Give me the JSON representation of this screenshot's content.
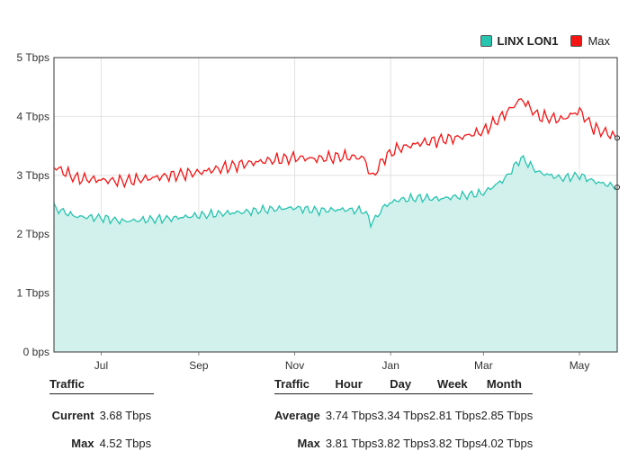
{
  "chart_data": {
    "type": "area",
    "title": "",
    "xlabel": "",
    "ylabel": "",
    "x_range": [
      "2024-06-01",
      "2025-05-25"
    ],
    "ylim": [
      0,
      5
    ],
    "y_unit": "Tbps",
    "y_ticks": [
      {
        "value": 0,
        "label": "0 bps"
      },
      {
        "value": 1,
        "label": "1 Tbps"
      },
      {
        "value": 2,
        "label": "2 Tbps"
      },
      {
        "value": 3,
        "label": "3 Tbps"
      },
      {
        "value": 4,
        "label": "4 Tbps"
      },
      {
        "value": 5,
        "label": "5 Tbps"
      }
    ],
    "x_ticks": [
      {
        "date": "2024-07-01",
        "label": "Jul"
      },
      {
        "date": "2024-09-01",
        "label": "Sep"
      },
      {
        "date": "2024-11-01",
        "label": "Nov"
      },
      {
        "date": "2025-01-01",
        "label": "Jan"
      },
      {
        "date": "2025-03-01",
        "label": "Mar"
      },
      {
        "date": "2025-05-01",
        "label": "May"
      }
    ],
    "grid": true,
    "legend_position": "top-right",
    "series": [
      {
        "name": "LINX LON1",
        "style": "area",
        "color": "#27c4b0",
        "fill": "#d2f1ec",
        "x": [
          "2024-06-01",
          "2024-06-15",
          "2024-07-01",
          "2024-07-15",
          "2024-08-01",
          "2024-08-15",
          "2024-09-01",
          "2024-09-15",
          "2024-10-01",
          "2024-10-15",
          "2024-11-01",
          "2024-11-15",
          "2024-12-01",
          "2024-12-15",
          "2024-12-20",
          "2024-12-28",
          "2025-01-05",
          "2025-01-20",
          "2025-02-01",
          "2025-02-15",
          "2025-03-01",
          "2025-03-15",
          "2025-03-25",
          "2025-04-05",
          "2025-04-20",
          "2025-05-01",
          "2025-05-10",
          "2025-05-25"
        ],
        "values": [
          2.45,
          2.3,
          2.28,
          2.22,
          2.25,
          2.27,
          2.32,
          2.35,
          2.38,
          2.42,
          2.45,
          2.4,
          2.42,
          2.4,
          2.18,
          2.48,
          2.58,
          2.62,
          2.6,
          2.65,
          2.7,
          2.95,
          3.3,
          3.05,
          2.95,
          3.0,
          2.9,
          2.8
        ]
      },
      {
        "name": "Max",
        "style": "line",
        "color": "#f41414",
        "x": [
          "2024-06-01",
          "2024-06-15",
          "2024-07-01",
          "2024-07-15",
          "2024-08-01",
          "2024-08-15",
          "2024-09-01",
          "2024-09-15",
          "2024-10-01",
          "2024-10-15",
          "2024-11-01",
          "2024-11-15",
          "2024-12-01",
          "2024-12-15",
          "2024-12-20",
          "2024-12-28",
          "2025-01-05",
          "2025-01-20",
          "2025-02-01",
          "2025-02-15",
          "2025-03-01",
          "2025-03-15",
          "2025-03-25",
          "2025-04-05",
          "2025-04-20",
          "2025-05-01",
          "2025-05-10",
          "2025-05-25"
        ],
        "values": [
          3.15,
          2.95,
          2.92,
          2.9,
          2.95,
          3.0,
          3.05,
          3.12,
          3.2,
          3.25,
          3.3,
          3.28,
          3.32,
          3.3,
          2.95,
          3.3,
          3.45,
          3.55,
          3.6,
          3.65,
          3.75,
          4.05,
          4.3,
          4.0,
          3.95,
          4.1,
          3.8,
          3.65
        ]
      }
    ]
  },
  "legend": [
    {
      "label": "LINX LON1",
      "color": "#27c4b0"
    },
    {
      "label": "Max",
      "color": "#f41414"
    }
  ],
  "summary_left": {
    "header": "Traffic",
    "rows": [
      {
        "label": "Current",
        "value": "3.68 Tbps"
      },
      {
        "label": "Max",
        "value": "4.52 Tbps"
      }
    ]
  },
  "summary_right": {
    "headers": [
      "Traffic",
      "Hour",
      "Day",
      "Week",
      "Month"
    ],
    "rows": [
      {
        "label": "Average",
        "values": [
          "3.74 Tbps",
          "3.34 Tbps",
          "2.81 Tbps",
          "2.85 Tbps"
        ]
      },
      {
        "label": "Max",
        "values": [
          "3.81 Tbps",
          "3.82 Tbps",
          "3.82 Tbps",
          "4.02 Tbps"
        ]
      }
    ]
  }
}
